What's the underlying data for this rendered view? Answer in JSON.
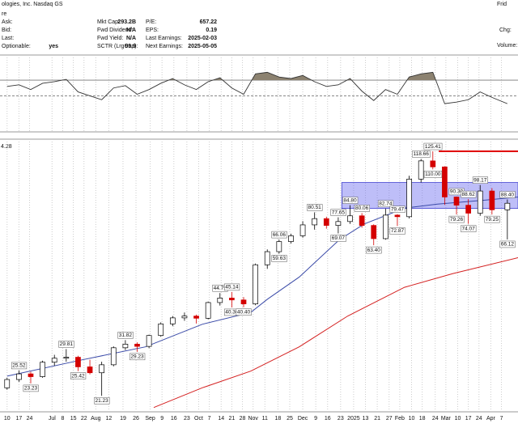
{
  "header": {
    "title": "ologies, Inc. Nasdaq GS",
    "subtitle": "re",
    "right_title": "Frid",
    "right_fields": [
      "Chg:",
      "Volume:"
    ],
    "columns": [
      [
        {
          "label": "Ask:"
        },
        {
          "label": "Bid:"
        },
        {
          "label": "Last:"
        },
        {
          "label": "Optionable:",
          "value": "yes"
        }
      ],
      [
        {
          "label": "Mkt Cap:",
          "value": "293.2B"
        },
        {
          "label": "Fwd Dividend:",
          "value": "N/A"
        },
        {
          "label": "Fwd Yield:",
          "value": "N/A"
        },
        {
          "label": "SCTR (LrgCap):",
          "value": "99.9"
        }
      ],
      [
        {
          "label": "P/E:",
          "value": "657.22"
        },
        {
          "label": "EPS:",
          "value": "0.19"
        },
        {
          "label": "Last Earnings:",
          "value": "2025-02-03"
        },
        {
          "label": "Next Earnings:",
          "value": "2025-05-05"
        }
      ]
    ]
  },
  "chart_data": [
    {
      "type": "line",
      "color": "#333333",
      "fill_color": "#8c8270",
      "x": [
        0,
        1,
        2,
        3,
        4,
        5,
        6,
        7,
        8,
        9,
        10,
        11,
        12,
        13,
        14,
        15,
        16,
        17,
        18,
        19,
        20,
        21,
        22,
        23,
        24,
        25,
        26,
        27,
        28,
        29,
        30,
        31,
        32,
        33,
        34,
        35,
        36,
        37,
        38,
        39,
        40,
        41,
        42.3
      ],
      "values": [
        62,
        64,
        58,
        66,
        68,
        71,
        55,
        50,
        45,
        60,
        63,
        52,
        58,
        66,
        72,
        64,
        58,
        68,
        73,
        60,
        52,
        78,
        80,
        74,
        72,
        76,
        68,
        62,
        64,
        72,
        56,
        44,
        58,
        52,
        74,
        78,
        80,
        40,
        42,
        45,
        55,
        48,
        40
      ],
      "ylim": [
        5,
        100
      ],
      "levels": [
        {
          "value": 70,
          "dash": false
        },
        {
          "value": 50,
          "dash": true
        }
      ]
    },
    {
      "type": "candlestick",
      "log": true,
      "ylim": [
        18.9,
        137
      ],
      "xlim": [
        -0.6,
        43.2
      ],
      "corner_label": "4.28",
      "up_color": "#000000",
      "down_color": "#d40000",
      "xticks": [
        {
          "value": 0,
          "label": "10"
        },
        {
          "value": 1.0,
          "label": "17"
        },
        {
          "value": 1.9,
          "label": "24"
        },
        {
          "value": 3.8,
          "label": "Jul"
        },
        {
          "value": 4.7,
          "label": "8"
        },
        {
          "value": 5.6,
          "label": "15"
        },
        {
          "value": 6.5,
          "label": "22"
        },
        {
          "value": 7.5,
          "label": "Aug"
        },
        {
          "value": 8.6,
          "label": "12"
        },
        {
          "value": 9.8,
          "label": "19"
        },
        {
          "value": 10.9,
          "label": "26"
        },
        {
          "value": 12.1,
          "label": "Sep"
        },
        {
          "value": 13.1,
          "label": "9"
        },
        {
          "value": 14.1,
          "label": "16"
        },
        {
          "value": 15.2,
          "label": "23"
        },
        {
          "value": 16.2,
          "label": "Oct"
        },
        {
          "value": 17.1,
          "label": "7"
        },
        {
          "value": 18.1,
          "label": "14"
        },
        {
          "value": 19.0,
          "label": "21"
        },
        {
          "value": 19.9,
          "label": "28"
        },
        {
          "value": 20.8,
          "label": "Nov"
        },
        {
          "value": 21.8,
          "label": "11"
        },
        {
          "value": 22.9,
          "label": "18"
        },
        {
          "value": 23.9,
          "label": "25"
        },
        {
          "value": 25.0,
          "label": "Dec"
        },
        {
          "value": 26.1,
          "label": "9"
        },
        {
          "value": 27.1,
          "label": "16"
        },
        {
          "value": 28.2,
          "label": "23"
        },
        {
          "value": 29.3,
          "label": "2025"
        },
        {
          "value": 30.3,
          "label": "13"
        },
        {
          "value": 31.3,
          "label": "21"
        },
        {
          "value": 32.3,
          "label": "27"
        },
        {
          "value": 33.2,
          "label": "Feb"
        },
        {
          "value": 34.2,
          "label": "10"
        },
        {
          "value": 35.1,
          "label": "18"
        },
        {
          "value": 36.2,
          "label": "24"
        },
        {
          "value": 37.1,
          "label": "Mar"
        },
        {
          "value": 38.1,
          "label": "10"
        },
        {
          "value": 39.0,
          "label": "17"
        },
        {
          "value": 39.9,
          "label": "24"
        },
        {
          "value": 40.9,
          "label": "Apr"
        },
        {
          "value": 41.8,
          "label": "7"
        }
      ],
      "x": [
        0,
        1,
        2,
        3,
        4,
        5,
        6,
        7,
        8,
        9,
        10,
        11,
        12,
        13,
        14,
        15,
        16,
        17,
        18,
        19,
        20,
        21,
        22,
        23,
        24,
        25,
        26,
        27,
        28,
        29,
        30,
        31,
        32,
        33,
        34,
        35,
        36,
        37,
        38,
        39,
        40,
        41,
        42.3
      ],
      "open": [
        22.5,
        23.9,
        24.9,
        24.4,
        27.1,
        27.9,
        28.1,
        26.2,
        25.1,
        26.6,
        30.1,
        30.9,
        30.4,
        32.9,
        35.8,
        37.4,
        37.9,
        37.3,
        41.8,
        43.2,
        42.6,
        41.4,
        55.0,
        60.5,
        65.1,
        67.9,
        73.5,
        76.9,
        73.2,
        75.3,
        78.5,
        73.2,
        66.5,
        78.9,
        78.0,
        102.5,
        117.0,
        112.0,
        90.0,
        84.8,
        80.0,
        94.0,
        82.0
      ],
      "high": [
        24.2,
        25.52,
        25.3,
        27.4,
        28.6,
        29.81,
        28.4,
        27.6,
        27.2,
        30.4,
        31.82,
        31.3,
        33.1,
        36.2,
        37.9,
        38.9,
        38.3,
        42.1,
        44.79,
        45.14,
        43.5,
        55.5,
        61.5,
        66.06,
        68.9,
        75.5,
        80.51,
        78.0,
        77.65,
        84.8,
        80.06,
        73.8,
        82.74,
        79.47,
        105.0,
        118.66,
        125.41,
        112.5,
        90.3,
        88.62,
        98.17,
        96.0,
        88.4
      ],
      "low": [
        22.2,
        23.5,
        23.23,
        24.2,
        26.4,
        27.2,
        25.42,
        24.8,
        21.23,
        26.3,
        29.6,
        29.23,
        30.0,
        32.6,
        35.2,
        36.6,
        35.9,
        37.0,
        40.9,
        40.36,
        40.4,
        41.0,
        53.4,
        59.63,
        64.2,
        67.0,
        71.0,
        71.5,
        69.07,
        74.0,
        72.0,
        63.4,
        66.0,
        72.87,
        77.0,
        100.0,
        110,
        85.0,
        79.26,
        74.07,
        78.5,
        79.25,
        66.12
      ],
      "close": [
        23.9,
        24.9,
        24.4,
        27.1,
        27.9,
        28.1,
        26.2,
        25.1,
        26.6,
        30.1,
        30.9,
        30.4,
        32.9,
        35.8,
        37.4,
        37.9,
        37.3,
        41.8,
        43.2,
        42.6,
        41.4,
        55.0,
        60.5,
        65.1,
        67.9,
        73.5,
        76.9,
        73.2,
        75.3,
        78.5,
        73.2,
        66.5,
        78.9,
        78.0,
        102.5,
        117.0,
        112.0,
        90.0,
        84.8,
        80.0,
        94.0,
        82.0,
        86.0
      ],
      "price_labels": [
        {
          "x": 1,
          "value": 25.52
        },
        {
          "x": 2,
          "value": 23.23
        },
        {
          "x": 5,
          "value": 29.81
        },
        {
          "x": 6,
          "value": 25.42
        },
        {
          "x": 8,
          "value": 21.23
        },
        {
          "x": 10,
          "value": 31.82
        },
        {
          "x": 11,
          "value": 29.23
        },
        {
          "x": 18,
          "value": 44.79
        },
        {
          "x": 19,
          "value": 45.14
        },
        {
          "x": 19,
          "value": 40.36
        },
        {
          "x": 20,
          "value": 40.4,
          "label": "40.40"
        },
        {
          "x": 23,
          "value": 66.06
        },
        {
          "x": 23,
          "value": 59.63
        },
        {
          "x": 26,
          "value": 80.51
        },
        {
          "x": 28,
          "value": 77.65
        },
        {
          "x": 28,
          "value": 69.07
        },
        {
          "x": 29,
          "value": 84.8,
          "label": "84.80"
        },
        {
          "x": 30,
          "value": 80.06
        },
        {
          "x": 31,
          "value": 63.4,
          "label": "63.40"
        },
        {
          "x": 32,
          "value": 82.74
        },
        {
          "x": 33,
          "value": 79.47
        },
        {
          "x": 33,
          "value": 72.87
        },
        {
          "x": 35,
          "value": 118.66
        },
        {
          "x": 36,
          "value": 125.41
        },
        {
          "x": 36,
          "value": 110,
          "label": "110.00"
        },
        {
          "x": 38,
          "value": 90.3,
          "label": "90.30"
        },
        {
          "x": 38,
          "value": 79.26
        },
        {
          "x": 39,
          "value": 88.62
        },
        {
          "x": 39,
          "value": 74.07
        },
        {
          "x": 40,
          "value": 98.17
        },
        {
          "x": 41,
          "value": 79.25
        },
        {
          "x": 42.3,
          "value": 88.4,
          "label": "88.40"
        },
        {
          "x": 42.3,
          "value": 66.12
        }
      ],
      "lines": [
        {
          "color": "#3a4aa8",
          "x": [
            0,
            6.2,
            11.7,
            16.5,
            20.6,
            22,
            24.7,
            28.1,
            30.2,
            33.6,
            36.4,
            40.5,
            43.2
          ],
          "values": [
            24.5,
            27.5,
            30.3,
            35.7,
            38.9,
            42.8,
            50.3,
            66,
            74,
            83,
            85.5,
            88,
            90
          ]
        },
        {
          "color": "#d42020",
          "x": [
            12.4,
            16.5,
            20.6,
            24.7,
            28.8,
            33.6,
            37.7,
            43.2
          ],
          "values": [
            19.5,
            22.5,
            25.4,
            30.3,
            37.9,
            46.7,
            51.6,
            57.9
          ]
        }
      ],
      "zone": {
        "xlim": [
          28.3,
          43.2
        ],
        "ylim": [
          82.8,
          100
        ],
        "color": "#6f6ff0"
      },
      "level": {
        "x": [
          36.5,
          43.2
        ],
        "value": 125.41,
        "color": "#e00000"
      }
    }
  ]
}
